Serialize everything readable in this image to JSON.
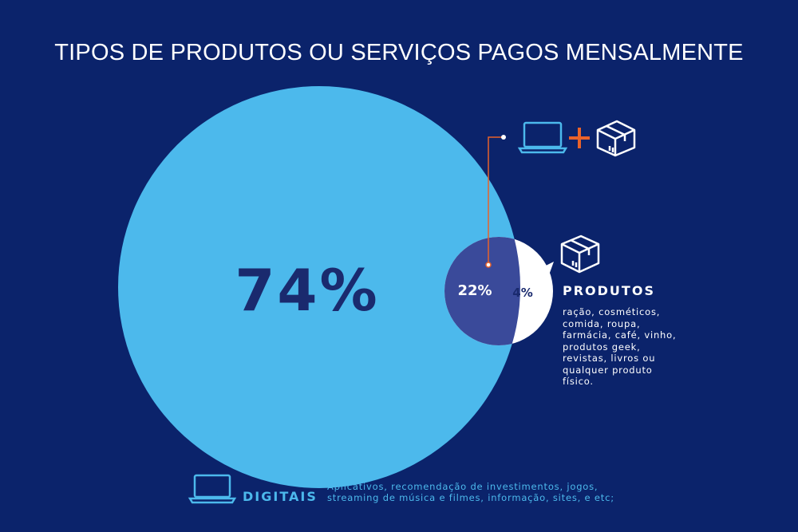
{
  "title": "TIPOS DE PRODUTOS OU SERVIÇOS PAGOS MENSALMENTE",
  "colors": {
    "background": "#0b236b",
    "digitais": "#4cb9ec",
    "ambos": "#3a4a9a",
    "produtos": "#ffffff",
    "accent": "#e8622a"
  },
  "chart_data": {
    "type": "bubble",
    "title": "TIPOS DE PRODUTOS OU SERVIÇOS PAGOS MENSALMENTE",
    "categories": [
      "DIGITAIS",
      "DIGITAIS + PRODUTOS",
      "PRODUTOS"
    ],
    "values": [
      74,
      22,
      4
    ],
    "labels": [
      "74%",
      "22%",
      "4%"
    ]
  },
  "ambos": {
    "icon": "laptop-plus-box-icon",
    "plus": "+"
  },
  "produtos": {
    "label": "PRODUTOS",
    "description": "ração, cosméticos, comida, roupa, farmácia, café, vinho, produtos geek, revistas, livros ou qualquer produto físico.",
    "icon": "box-icon"
  },
  "digitais": {
    "label": "DIGITAIS",
    "description_line1": "Aplicativos, recomendação de investimentos, jogos,",
    "description_line2": "streaming de música e filmes, informação, sites, e etc;",
    "icon": "laptop-icon"
  }
}
